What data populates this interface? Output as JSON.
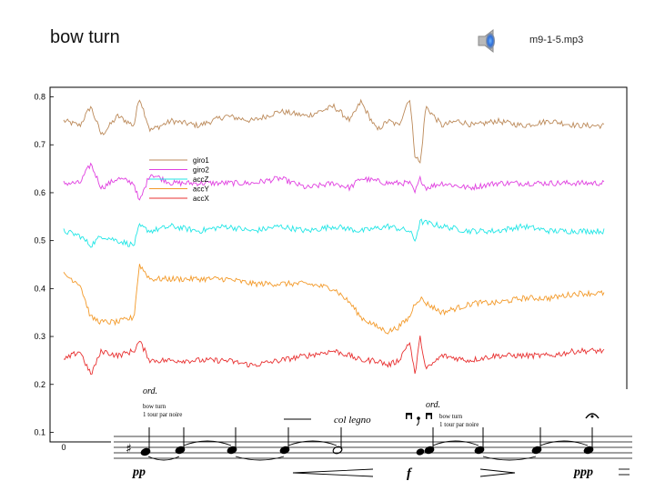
{
  "slide": {
    "title": "bow turn",
    "audio_file": "m9-1-5.mp3"
  },
  "icons": {
    "audio": "speaker-icon"
  },
  "colors": {
    "giro1": "#bc8a5a",
    "giro2": "#e040e0",
    "accZ": "#22e6e6",
    "accY": "#f39a2a",
    "accX": "#e83030",
    "axis": "#000000"
  },
  "chart_data": {
    "type": "line",
    "title": "",
    "xlabel": "",
    "ylabel": "",
    "ylim": [
      0.08,
      0.82
    ],
    "yticks": [
      "0.8",
      "0.7",
      "0.6",
      "0.5",
      "0.4",
      "0.3",
      "0.2",
      "0.1"
    ],
    "xticks": [
      "0"
    ],
    "legend": {
      "placement": "upper-left",
      "entries": [
        "giro1",
        "giro2",
        "accZ",
        "accY",
        "accX"
      ]
    },
    "series": [
      {
        "name": "giro1",
        "color": "#bc8a5a",
        "points": [
          [
            0,
            0.75
          ],
          [
            0.03,
            0.74
          ],
          [
            0.05,
            0.78
          ],
          [
            0.07,
            0.72
          ],
          [
            0.1,
            0.76
          ],
          [
            0.13,
            0.74
          ],
          [
            0.14,
            0.8
          ],
          [
            0.16,
            0.73
          ],
          [
            0.2,
            0.75
          ],
          [
            0.25,
            0.74
          ],
          [
            0.3,
            0.76
          ],
          [
            0.35,
            0.75
          ],
          [
            0.4,
            0.77
          ],
          [
            0.45,
            0.76
          ],
          [
            0.5,
            0.78
          ],
          [
            0.53,
            0.75
          ],
          [
            0.55,
            0.79
          ],
          [
            0.58,
            0.73
          ],
          [
            0.6,
            0.75
          ],
          [
            0.62,
            0.74
          ],
          [
            0.64,
            0.8
          ],
          [
            0.65,
            0.68
          ],
          [
            0.66,
            0.66
          ],
          [
            0.67,
            0.78
          ],
          [
            0.7,
            0.74
          ],
          [
            0.73,
            0.75
          ],
          [
            0.76,
            0.74
          ],
          [
            0.8,
            0.75
          ],
          [
            0.85,
            0.74
          ],
          [
            0.9,
            0.75
          ],
          [
            0.95,
            0.74
          ],
          [
            1.0,
            0.74
          ]
        ]
      },
      {
        "name": "giro2",
        "color": "#e040e0",
        "points": [
          [
            0,
            0.62
          ],
          [
            0.03,
            0.62
          ],
          [
            0.05,
            0.66
          ],
          [
            0.07,
            0.61
          ],
          [
            0.1,
            0.63
          ],
          [
            0.13,
            0.62
          ],
          [
            0.14,
            0.58
          ],
          [
            0.16,
            0.64
          ],
          [
            0.2,
            0.62
          ],
          [
            0.25,
            0.62
          ],
          [
            0.3,
            0.62
          ],
          [
            0.35,
            0.62
          ],
          [
            0.4,
            0.63
          ],
          [
            0.45,
            0.61
          ],
          [
            0.5,
            0.62
          ],
          [
            0.53,
            0.61
          ],
          [
            0.55,
            0.63
          ],
          [
            0.6,
            0.62
          ],
          [
            0.64,
            0.62
          ],
          [
            0.65,
            0.6
          ],
          [
            0.66,
            0.63
          ],
          [
            0.67,
            0.61
          ],
          [
            0.7,
            0.62
          ],
          [
            0.75,
            0.61
          ],
          [
            0.8,
            0.62
          ],
          [
            0.85,
            0.62
          ],
          [
            0.9,
            0.62
          ],
          [
            0.95,
            0.62
          ],
          [
            1.0,
            0.62
          ]
        ]
      },
      {
        "name": "accZ",
        "color": "#22e6e6",
        "points": [
          [
            0,
            0.52
          ],
          [
            0.03,
            0.51
          ],
          [
            0.05,
            0.49
          ],
          [
            0.07,
            0.51
          ],
          [
            0.1,
            0.5
          ],
          [
            0.13,
            0.49
          ],
          [
            0.14,
            0.53
          ],
          [
            0.16,
            0.52
          ],
          [
            0.2,
            0.53
          ],
          [
            0.25,
            0.52
          ],
          [
            0.3,
            0.53
          ],
          [
            0.35,
            0.52
          ],
          [
            0.4,
            0.53
          ],
          [
            0.45,
            0.52
          ],
          [
            0.5,
            0.53
          ],
          [
            0.55,
            0.52
          ],
          [
            0.6,
            0.53
          ],
          [
            0.64,
            0.52
          ],
          [
            0.65,
            0.5
          ],
          [
            0.66,
            0.54
          ],
          [
            0.7,
            0.53
          ],
          [
            0.75,
            0.52
          ],
          [
            0.8,
            0.52
          ],
          [
            0.85,
            0.53
          ],
          [
            0.9,
            0.52
          ],
          [
            0.95,
            0.52
          ],
          [
            1.0,
            0.52
          ]
        ]
      },
      {
        "name": "accY",
        "color": "#f39a2a",
        "points": [
          [
            0,
            0.43
          ],
          [
            0.03,
            0.41
          ],
          [
            0.05,
            0.34
          ],
          [
            0.07,
            0.33
          ],
          [
            0.1,
            0.33
          ],
          [
            0.13,
            0.34
          ],
          [
            0.14,
            0.45
          ],
          [
            0.16,
            0.42
          ],
          [
            0.2,
            0.42
          ],
          [
            0.25,
            0.42
          ],
          [
            0.3,
            0.42
          ],
          [
            0.35,
            0.41
          ],
          [
            0.4,
            0.41
          ],
          [
            0.45,
            0.41
          ],
          [
            0.5,
            0.4
          ],
          [
            0.53,
            0.37
          ],
          [
            0.55,
            0.34
          ],
          [
            0.58,
            0.32
          ],
          [
            0.6,
            0.31
          ],
          [
            0.62,
            0.32
          ],
          [
            0.64,
            0.34
          ],
          [
            0.65,
            0.37
          ],
          [
            0.66,
            0.38
          ],
          [
            0.67,
            0.37
          ],
          [
            0.7,
            0.35
          ],
          [
            0.73,
            0.36
          ],
          [
            0.76,
            0.37
          ],
          [
            0.8,
            0.37
          ],
          [
            0.85,
            0.38
          ],
          [
            0.9,
            0.38
          ],
          [
            0.95,
            0.39
          ],
          [
            1.0,
            0.39
          ]
        ]
      },
      {
        "name": "accX",
        "color": "#e83030",
        "points": [
          [
            0,
            0.25
          ],
          [
            0.03,
            0.27
          ],
          [
            0.05,
            0.22
          ],
          [
            0.07,
            0.27
          ],
          [
            0.1,
            0.26
          ],
          [
            0.13,
            0.27
          ],
          [
            0.14,
            0.29
          ],
          [
            0.16,
            0.25
          ],
          [
            0.2,
            0.25
          ],
          [
            0.25,
            0.25
          ],
          [
            0.3,
            0.25
          ],
          [
            0.35,
            0.24
          ],
          [
            0.4,
            0.25
          ],
          [
            0.45,
            0.26
          ],
          [
            0.5,
            0.27
          ],
          [
            0.53,
            0.26
          ],
          [
            0.55,
            0.25
          ],
          [
            0.58,
            0.25
          ],
          [
            0.6,
            0.24
          ],
          [
            0.62,
            0.25
          ],
          [
            0.64,
            0.29
          ],
          [
            0.65,
            0.22
          ],
          [
            0.66,
            0.3
          ],
          [
            0.67,
            0.23
          ],
          [
            0.7,
            0.26
          ],
          [
            0.75,
            0.25
          ],
          [
            0.8,
            0.26
          ],
          [
            0.85,
            0.26
          ],
          [
            0.9,
            0.26
          ],
          [
            0.95,
            0.27
          ],
          [
            1.0,
            0.27
          ]
        ]
      }
    ]
  },
  "score": {
    "ord_1": "ord.",
    "instr_1_line1": "bow turn",
    "instr_1_line2": "1 tour par noire",
    "col_legno": "col legno",
    "ord_2": "ord.",
    "instr_2_line1": "bow turn",
    "instr_2_line2": "1 tour par noire",
    "dyn_pp": "pp",
    "dyn_f": "f",
    "dyn_ppp": "ppp"
  }
}
